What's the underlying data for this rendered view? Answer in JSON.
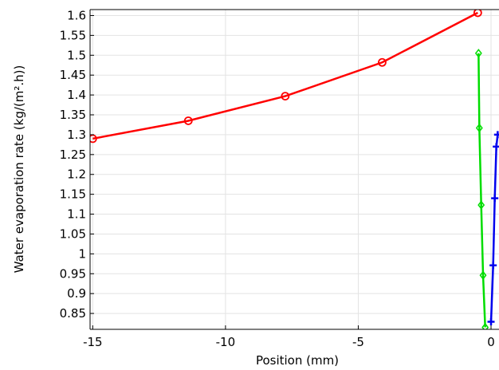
{
  "chart_data": {
    "type": "line",
    "title": "",
    "xlabel": "Position (mm)",
    "ylabel": "Water evaporation rate (kg/(m².h))",
    "xlim": [
      -15.1,
      0.3
    ],
    "ylim": [
      0.81,
      1.615
    ],
    "xticks": [
      -15,
      -10,
      -5,
      0
    ],
    "xtick_labels": [
      "-15",
      "-10",
      "-5",
      "0"
    ],
    "yticks": [
      0.85,
      0.9,
      0.95,
      1,
      1.05,
      1.1,
      1.15,
      1.2,
      1.25,
      1.3,
      1.35,
      1.4,
      1.45,
      1.5,
      1.55,
      1.6
    ],
    "ytick_labels": [
      "0.85",
      "0.9",
      "0.95",
      "1",
      "1.05",
      "1.1",
      "1.15",
      "1.2",
      "1.25",
      "1.3",
      "1.35",
      "1.4",
      "1.45",
      "1.5",
      "1.55",
      "1.6"
    ],
    "grid": true,
    "series": [
      {
        "color": "#ff0000",
        "marker": "circle",
        "x": [
          -15.0,
          -11.4,
          -7.75,
          -4.1,
          -0.5
        ],
        "y": [
          1.29,
          1.335,
          1.397,
          1.482,
          1.607
        ]
      },
      {
        "color": "#00dd00",
        "marker": "diamond",
        "x": [
          -0.47,
          -0.44,
          -0.37,
          -0.3,
          -0.22
        ],
        "y": [
          1.505,
          1.317,
          1.123,
          0.946,
          0.815
        ]
      },
      {
        "color": "#0000ee",
        "marker": "plus",
        "x": [
          0.0,
          0.08,
          0.14,
          0.2,
          0.25
        ],
        "y": [
          0.829,
          0.971,
          1.14,
          1.27,
          1.3
        ]
      }
    ]
  }
}
